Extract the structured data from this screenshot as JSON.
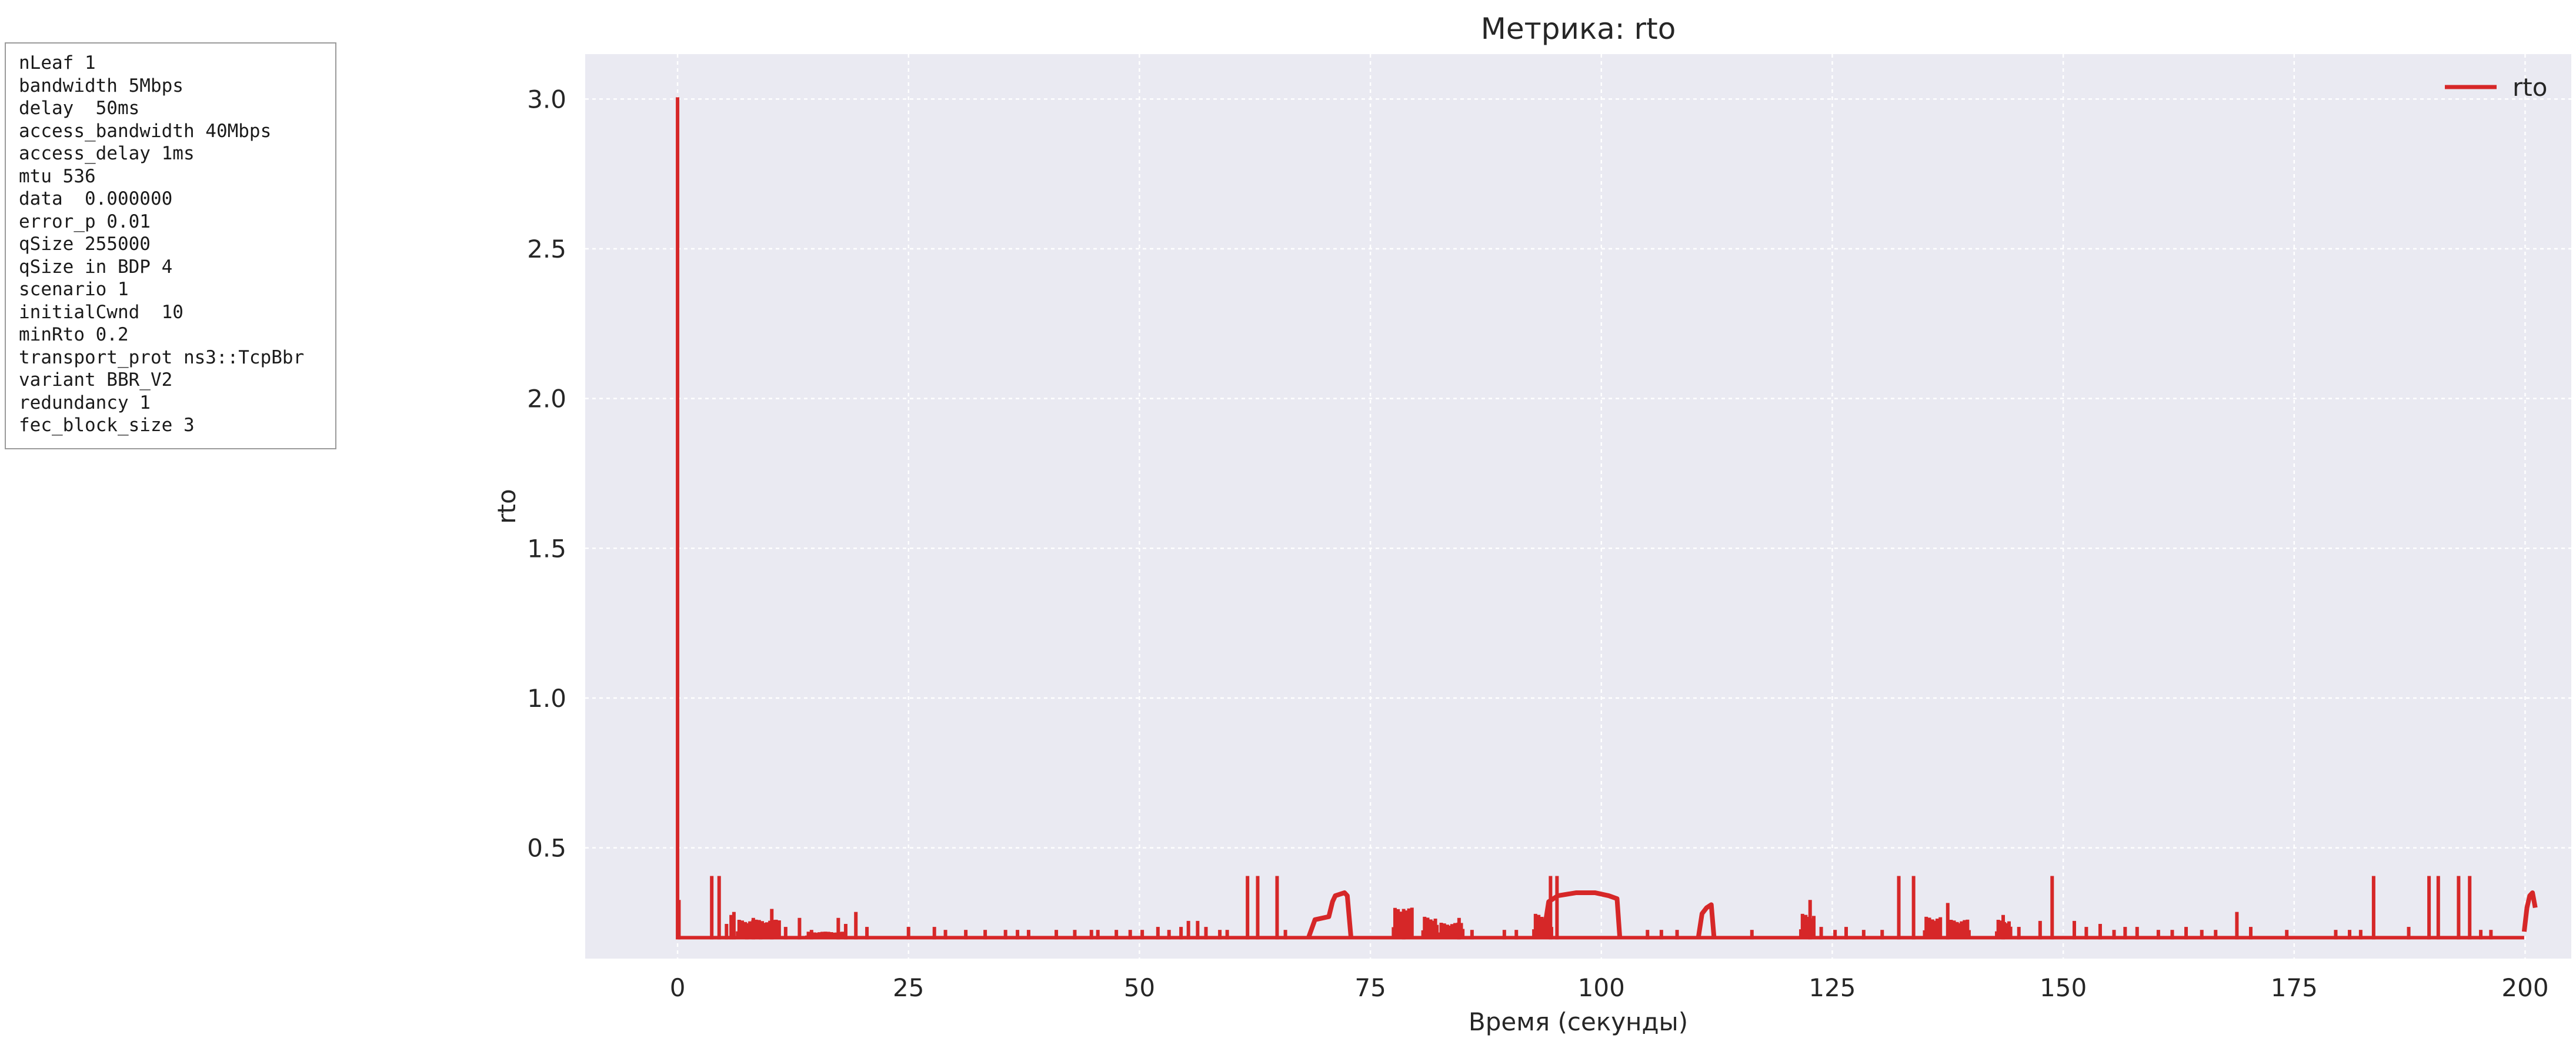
{
  "params": [
    "nLeaf 1",
    "bandwidth 5Mbps",
    "delay  50ms",
    "access_bandwidth 40Mbps",
    "access_delay 1ms",
    "mtu 536",
    "data  0.000000",
    "error_p 0.01",
    "qSize 255000",
    "qSize in BDP 4",
    "scenario 1",
    "initialCwnd  10",
    "minRto 0.2",
    "transport_prot ns3::TcpBbr",
    "variant BBR_V2",
    "redundancy 1",
    "fec_block_size 3"
  ],
  "colors": {
    "line": "#d62728",
    "plot_background": "#eaeaf2",
    "grid": "#ffffff"
  },
  "chart_data": {
    "type": "line",
    "title": "Метрика: rto",
    "xlabel": "Время (секунды)",
    "ylabel": "rto",
    "xlim": [
      -10,
      205
    ],
    "ylim": [
      0.13,
      3.15
    ],
    "xticks": [
      0,
      25,
      50,
      75,
      100,
      125,
      150,
      175,
      200
    ],
    "yticks": [
      0.5,
      1.0,
      1.5,
      2.0,
      2.5,
      3.0
    ],
    "ytick_labels": [
      "0.5",
      "1.0",
      "1.5",
      "2.0",
      "2.5",
      "3.0"
    ],
    "grid": true,
    "legend_position": "top-right",
    "series": [
      {
        "name": "rto",
        "baseline": 0.2,
        "spikes": [
          {
            "x": 0.0,
            "y": 3.0
          },
          {
            "x": 0.15,
            "y": 0.32
          },
          {
            "x": 3.7,
            "y": 0.4
          },
          {
            "x": 4.5,
            "y": 0.4
          },
          {
            "x": 5.3,
            "y": 0.24
          },
          {
            "x": 5.8,
            "y": 0.27
          },
          {
            "x": 6.1,
            "y": 0.28
          },
          {
            "x": 7.5,
            "y": 0.23
          },
          {
            "x": 8.2,
            "y": 0.26
          },
          {
            "x": 9.0,
            "y": 0.24
          },
          {
            "x": 10.2,
            "y": 0.29
          },
          {
            "x": 11.7,
            "y": 0.23
          },
          {
            "x": 13.2,
            "y": 0.26
          },
          {
            "x": 14.5,
            "y": 0.22
          },
          {
            "x": 17.4,
            "y": 0.26
          },
          {
            "x": 18.2,
            "y": 0.24
          },
          {
            "x": 19.3,
            "y": 0.28
          },
          {
            "x": 20.5,
            "y": 0.23
          },
          {
            "x": 25.0,
            "y": 0.23
          },
          {
            "x": 27.8,
            "y": 0.23
          },
          {
            "x": 29.0,
            "y": 0.22
          },
          {
            "x": 31.2,
            "y": 0.22
          },
          {
            "x": 33.3,
            "y": 0.22
          },
          {
            "x": 35.5,
            "y": 0.22
          },
          {
            "x": 36.8,
            "y": 0.22
          },
          {
            "x": 38.0,
            "y": 0.22
          },
          {
            "x": 41.0,
            "y": 0.22
          },
          {
            "x": 43.0,
            "y": 0.22
          },
          {
            "x": 44.8,
            "y": 0.22
          },
          {
            "x": 45.5,
            "y": 0.22
          },
          {
            "x": 47.5,
            "y": 0.22
          },
          {
            "x": 49.0,
            "y": 0.22
          },
          {
            "x": 50.3,
            "y": 0.22
          },
          {
            "x": 52.0,
            "y": 0.23
          },
          {
            "x": 53.2,
            "y": 0.22
          },
          {
            "x": 54.5,
            "y": 0.23
          },
          {
            "x": 55.3,
            "y": 0.25
          },
          {
            "x": 56.3,
            "y": 0.25
          },
          {
            "x": 57.2,
            "y": 0.23
          },
          {
            "x": 58.7,
            "y": 0.22
          },
          {
            "x": 59.5,
            "y": 0.22
          },
          {
            "x": 61.7,
            "y": 0.4
          },
          {
            "x": 62.8,
            "y": 0.4
          },
          {
            "x": 64.9,
            "y": 0.4
          },
          {
            "x": 65.8,
            "y": 0.22
          },
          {
            "x": 78.6,
            "y": 0.29
          },
          {
            "x": 84.6,
            "y": 0.26
          },
          {
            "x": 86.0,
            "y": 0.22
          },
          {
            "x": 89.5,
            "y": 0.22
          },
          {
            "x": 90.8,
            "y": 0.22
          },
          {
            "x": 94.5,
            "y": 0.4
          },
          {
            "x": 95.2,
            "y": 0.4
          },
          {
            "x": 105.0,
            "y": 0.22
          },
          {
            "x": 106.5,
            "y": 0.22
          },
          {
            "x": 108.2,
            "y": 0.22
          },
          {
            "x": 116.3,
            "y": 0.22
          },
          {
            "x": 122.6,
            "y": 0.32
          },
          {
            "x": 123.8,
            "y": 0.23
          },
          {
            "x": 125.3,
            "y": 0.22
          },
          {
            "x": 126.5,
            "y": 0.23
          },
          {
            "x": 128.4,
            "y": 0.22
          },
          {
            "x": 130.4,
            "y": 0.22
          },
          {
            "x": 132.2,
            "y": 0.4
          },
          {
            "x": 133.8,
            "y": 0.4
          },
          {
            "x": 137.5,
            "y": 0.31
          },
          {
            "x": 143.5,
            "y": 0.27
          },
          {
            "x": 145.2,
            "y": 0.23
          },
          {
            "x": 147.5,
            "y": 0.25
          },
          {
            "x": 148.8,
            "y": 0.4
          },
          {
            "x": 151.2,
            "y": 0.25
          },
          {
            "x": 152.5,
            "y": 0.23
          },
          {
            "x": 154.0,
            "y": 0.24
          },
          {
            "x": 155.5,
            "y": 0.22
          },
          {
            "x": 156.7,
            "y": 0.23
          },
          {
            "x": 158.0,
            "y": 0.23
          },
          {
            "x": 160.3,
            "y": 0.22
          },
          {
            "x": 161.8,
            "y": 0.22
          },
          {
            "x": 163.3,
            "y": 0.23
          },
          {
            "x": 165.0,
            "y": 0.22
          },
          {
            "x": 166.5,
            "y": 0.22
          },
          {
            "x": 168.8,
            "y": 0.28
          },
          {
            "x": 170.3,
            "y": 0.23
          },
          {
            "x": 174.2,
            "y": 0.22
          },
          {
            "x": 179.5,
            "y": 0.22
          },
          {
            "x": 181.0,
            "y": 0.22
          },
          {
            "x": 182.2,
            "y": 0.22
          },
          {
            "x": 183.6,
            "y": 0.4
          },
          {
            "x": 187.4,
            "y": 0.23
          },
          {
            "x": 189.6,
            "y": 0.4
          },
          {
            "x": 190.6,
            "y": 0.4
          },
          {
            "x": 192.8,
            "y": 0.4
          },
          {
            "x": 194.0,
            "y": 0.4
          },
          {
            "x": 195.2,
            "y": 0.22
          },
          {
            "x": 196.3,
            "y": 0.22
          }
        ],
        "plateaus": [
          {
            "x": [
              68.3,
              69.0,
              70.5,
              70.9,
              71.2,
              72.2,
              72.5,
              72.9
            ],
            "y": [
              0.2,
              0.26,
              0.27,
              0.32,
              0.34,
              0.35,
              0.34,
              0.2
            ]
          },
          {
            "x": [
              93.7,
              94.3,
              95.3,
              97.3,
              99.3,
              100.8,
              101.7,
              102.0
            ],
            "y": [
              0.2,
              0.32,
              0.34,
              0.35,
              0.35,
              0.34,
              0.33,
              0.2
            ]
          },
          {
            "x": [
              110.5,
              110.9,
              111.4,
              111.9,
              112.2
            ],
            "y": [
              0.2,
              0.28,
              0.3,
              0.31,
              0.2
            ]
          },
          {
            "x": [
              199.9,
              200.2,
              200.5,
              200.8,
              201.1
            ],
            "y": [
              0.22,
              0.3,
              0.34,
              0.35,
              0.3
            ]
          }
        ],
        "noise_bands": [
          {
            "x0": 6.5,
            "x1": 11.0,
            "ymax": 0.26
          },
          {
            "x0": 14.0,
            "x1": 18.0,
            "ymax": 0.22
          },
          {
            "x0": 77.5,
            "x1": 79.5,
            "ymax": 0.3
          },
          {
            "x0": 80.7,
            "x1": 82.2,
            "ymax": 0.27
          },
          {
            "x0": 82.5,
            "x1": 85.0,
            "ymax": 0.25
          },
          {
            "x0": 92.7,
            "x1": 94.6,
            "ymax": 0.28
          },
          {
            "x0": 121.6,
            "x1": 123.0,
            "ymax": 0.28
          },
          {
            "x0": 135.0,
            "x1": 136.7,
            "ymax": 0.27
          },
          {
            "x0": 137.7,
            "x1": 139.8,
            "ymax": 0.26
          },
          {
            "x0": 142.8,
            "x1": 144.3,
            "ymax": 0.26
          }
        ]
      }
    ]
  }
}
